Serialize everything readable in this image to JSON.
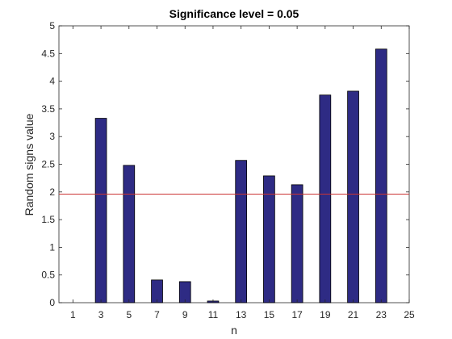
{
  "chart_data": {
    "type": "bar",
    "title": "Significance level = 0.05",
    "xlabel": "n",
    "ylabel": "Random signs value",
    "x": [
      3,
      5,
      7,
      9,
      11,
      13,
      15,
      17,
      19,
      21,
      23
    ],
    "values": [
      3.33,
      2.48,
      0.41,
      0.38,
      0.03,
      2.57,
      2.29,
      2.13,
      3.75,
      3.82,
      4.58
    ],
    "xlim": [
      0,
      25
    ],
    "ylim": [
      0,
      5
    ],
    "xticks": [
      1,
      3,
      5,
      7,
      9,
      11,
      13,
      15,
      17,
      19,
      21,
      23,
      25
    ],
    "yticks": [
      0,
      0.5,
      1,
      1.5,
      2,
      2.5,
      3,
      3.5,
      4,
      4.5,
      5
    ],
    "threshold": 1.96,
    "bar_color": "#2E2B84",
    "threshold_color": "#CC3333",
    "grid": false
  }
}
